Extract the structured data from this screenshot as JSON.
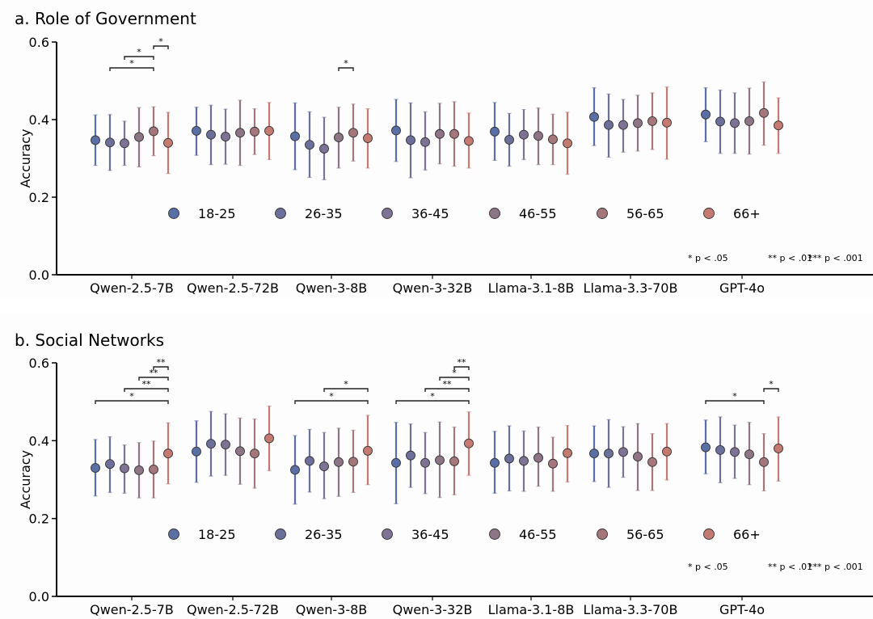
{
  "chart_data": [
    {
      "type": "scatter",
      "subtype": "errorbar-dot",
      "title": "a. Role of Government",
      "xlabel": "",
      "ylabel": "Accuracy",
      "ylim": [
        0.0,
        0.6
      ],
      "yticks": [
        0.0,
        0.2,
        0.4,
        0.6
      ],
      "ytick_labels": [
        "0.0",
        "0.2",
        "0.4",
        "0.6"
      ],
      "grid": false,
      "categories": [
        "Qwen-2.5-7B",
        "Qwen-2.5-72B",
        "Qwen-3-8B",
        "Qwen-3-32B",
        "Llama-3.1-8B",
        "Llama-3.3-70B",
        "GPT-4o"
      ],
      "legend_position": "center",
      "series": [
        {
          "name": "18-25",
          "color": "#5a6fa6",
          "values": [
            0.347,
            0.371,
            0.357,
            0.372,
            0.369,
            0.407,
            0.413
          ],
          "lower": [
            0.282,
            0.308,
            0.271,
            0.292,
            0.295,
            0.333,
            0.343
          ],
          "upper": [
            0.412,
            0.432,
            0.443,
            0.452,
            0.444,
            0.482,
            0.482
          ]
        },
        {
          "name": "26-35",
          "color": "#6b6f9a",
          "values": [
            0.341,
            0.361,
            0.335,
            0.347,
            0.348,
            0.386,
            0.395
          ],
          "lower": [
            0.269,
            0.284,
            0.251,
            0.25,
            0.28,
            0.303,
            0.313
          ],
          "upper": [
            0.413,
            0.437,
            0.42,
            0.443,
            0.416,
            0.466,
            0.476
          ]
        },
        {
          "name": "36-45",
          "color": "#7e7394",
          "values": [
            0.339,
            0.356,
            0.325,
            0.342,
            0.361,
            0.386,
            0.391
          ],
          "lower": [
            0.282,
            0.285,
            0.245,
            0.27,
            0.297,
            0.316,
            0.313
          ],
          "upper": [
            0.396,
            0.427,
            0.406,
            0.42,
            0.426,
            0.452,
            0.469
          ]
        },
        {
          "name": "46-55",
          "color": "#8e7586",
          "values": [
            0.355,
            0.366,
            0.354,
            0.363,
            0.358,
            0.391,
            0.396
          ],
          "lower": [
            0.278,
            0.282,
            0.275,
            0.286,
            0.284,
            0.319,
            0.311
          ],
          "upper": [
            0.431,
            0.45,
            0.432,
            0.442,
            0.43,
            0.463,
            0.481
          ]
        },
        {
          "name": "56-65",
          "color": "#a5777a",
          "values": [
            0.37,
            0.369,
            0.366,
            0.363,
            0.349,
            0.396,
            0.417
          ],
          "lower": [
            0.307,
            0.31,
            0.293,
            0.28,
            0.284,
            0.323,
            0.334
          ],
          "upper": [
            0.433,
            0.428,
            0.44,
            0.446,
            0.414,
            0.469,
            0.497
          ]
        },
        {
          "name": "66+",
          "color": "#c47a70",
          "values": [
            0.34,
            0.371,
            0.352,
            0.345,
            0.339,
            0.392,
            0.385
          ],
          "lower": [
            0.261,
            0.297,
            0.275,
            0.275,
            0.259,
            0.298,
            0.313
          ],
          "upper": [
            0.419,
            0.444,
            0.428,
            0.417,
            0.419,
            0.484,
            0.456
          ]
        }
      ],
      "significance": [
        {
          "category": "Qwen-2.5-7B",
          "from": "56-65",
          "to": "66+",
          "label": "*",
          "level": 0
        },
        {
          "category": "Qwen-2.5-7B",
          "from": "36-45",
          "to": "56-65",
          "label": "*",
          "level": 1
        },
        {
          "category": "Qwen-2.5-7B",
          "from": "26-35",
          "to": "56-65",
          "label": "*",
          "level": 2
        },
        {
          "category": "Qwen-3-8B",
          "from": "46-55",
          "to": "56-65",
          "label": "*",
          "level": 2
        }
      ],
      "note": [
        "* p < .05",
        "** p < .01",
        "*** p < .001"
      ]
    },
    {
      "type": "scatter",
      "subtype": "errorbar-dot",
      "title": "b. Social Networks",
      "xlabel": "",
      "ylabel": "Accuracy",
      "ylim": [
        0.0,
        0.6
      ],
      "yticks": [
        0.0,
        0.2,
        0.4,
        0.6
      ],
      "ytick_labels": [
        "0.0",
        "0.2",
        "0.4",
        "0.6"
      ],
      "grid": false,
      "categories": [
        "Qwen-2.5-7B",
        "Qwen-2.5-72B",
        "Qwen-3-8B",
        "Qwen-3-32B",
        "Llama-3.1-8B",
        "Llama-3.3-70B",
        "GPT-4o"
      ],
      "legend_position": "center",
      "series": [
        {
          "name": "18-25",
          "color": "#5a6fa6",
          "values": [
            0.33,
            0.372,
            0.325,
            0.343,
            0.343,
            0.367,
            0.383
          ],
          "lower": [
            0.258,
            0.293,
            0.237,
            0.238,
            0.265,
            0.295,
            0.315
          ],
          "upper": [
            0.403,
            0.451,
            0.413,
            0.447,
            0.424,
            0.438,
            0.453
          ]
        },
        {
          "name": "26-35",
          "color": "#6b6f9a",
          "values": [
            0.34,
            0.392,
            0.348,
            0.362,
            0.354,
            0.367,
            0.376
          ],
          "lower": [
            0.267,
            0.309,
            0.268,
            0.28,
            0.271,
            0.28,
            0.292
          ],
          "upper": [
            0.41,
            0.475,
            0.429,
            0.443,
            0.438,
            0.454,
            0.461
          ]
        },
        {
          "name": "36-45",
          "color": "#7e7394",
          "values": [
            0.329,
            0.39,
            0.334,
            0.343,
            0.348,
            0.371,
            0.371
          ],
          "lower": [
            0.265,
            0.311,
            0.251,
            0.264,
            0.27,
            0.306,
            0.303
          ],
          "upper": [
            0.389,
            0.469,
            0.421,
            0.421,
            0.425,
            0.436,
            0.44
          ]
        },
        {
          "name": "46-55",
          "color": "#8e7586",
          "values": [
            0.324,
            0.373,
            0.345,
            0.35,
            0.356,
            0.359,
            0.365
          ],
          "lower": [
            0.253,
            0.288,
            0.257,
            0.254,
            0.283,
            0.272,
            0.287
          ],
          "upper": [
            0.395,
            0.458,
            0.432,
            0.448,
            0.435,
            0.444,
            0.447
          ]
        },
        {
          "name": "56-65",
          "color": "#a5777a",
          "values": [
            0.326,
            0.367,
            0.346,
            0.347,
            0.341,
            0.345,
            0.345
          ],
          "lower": [
            0.253,
            0.278,
            0.267,
            0.261,
            0.27,
            0.272,
            0.271
          ],
          "upper": [
            0.399,
            0.456,
            0.427,
            0.435,
            0.409,
            0.418,
            0.418
          ]
        },
        {
          "name": "66+",
          "color": "#c47a70",
          "values": [
            0.367,
            0.406,
            0.374,
            0.393,
            0.368,
            0.372,
            0.38
          ],
          "lower": [
            0.289,
            0.323,
            0.287,
            0.311,
            0.294,
            0.299,
            0.296
          ],
          "upper": [
            0.446,
            0.489,
            0.465,
            0.474,
            0.439,
            0.444,
            0.461
          ]
        }
      ],
      "significance": [
        {
          "category": "Qwen-2.5-7B",
          "from": "56-65",
          "to": "66+",
          "label": "**",
          "level": 0
        },
        {
          "category": "Qwen-2.5-7B",
          "from": "46-55",
          "to": "66+",
          "label": "**",
          "level": 1
        },
        {
          "category": "Qwen-2.5-7B",
          "from": "36-45",
          "to": "66+",
          "label": "**",
          "level": 2
        },
        {
          "category": "Qwen-2.5-7B",
          "from": "18-25",
          "to": "66+",
          "label": "*",
          "level": 3
        },
        {
          "category": "Qwen-3-8B",
          "from": "36-45",
          "to": "66+",
          "label": "*",
          "level": 2
        },
        {
          "category": "Qwen-3-8B",
          "from": "18-25",
          "to": "66+",
          "label": "*",
          "level": 3
        },
        {
          "category": "Qwen-3-32B",
          "from": "56-65",
          "to": "66+",
          "label": "**",
          "level": 0
        },
        {
          "category": "Qwen-3-32B",
          "from": "46-55",
          "to": "66+",
          "label": "*",
          "level": 1
        },
        {
          "category": "Qwen-3-32B",
          "from": "36-45",
          "to": "66+",
          "label": "**",
          "level": 2
        },
        {
          "category": "Qwen-3-32B",
          "from": "18-25",
          "to": "66+",
          "label": "*",
          "level": 3
        },
        {
          "category": "GPT-4o",
          "from": "56-65",
          "to": "66+",
          "label": "*",
          "level": 2
        },
        {
          "category": "GPT-4o",
          "from": "18-25",
          "to": "56-65",
          "label": "*",
          "level": 3
        }
      ],
      "note": [
        "* p < .05",
        "** p < .01",
        "*** p < .001"
      ]
    }
  ]
}
